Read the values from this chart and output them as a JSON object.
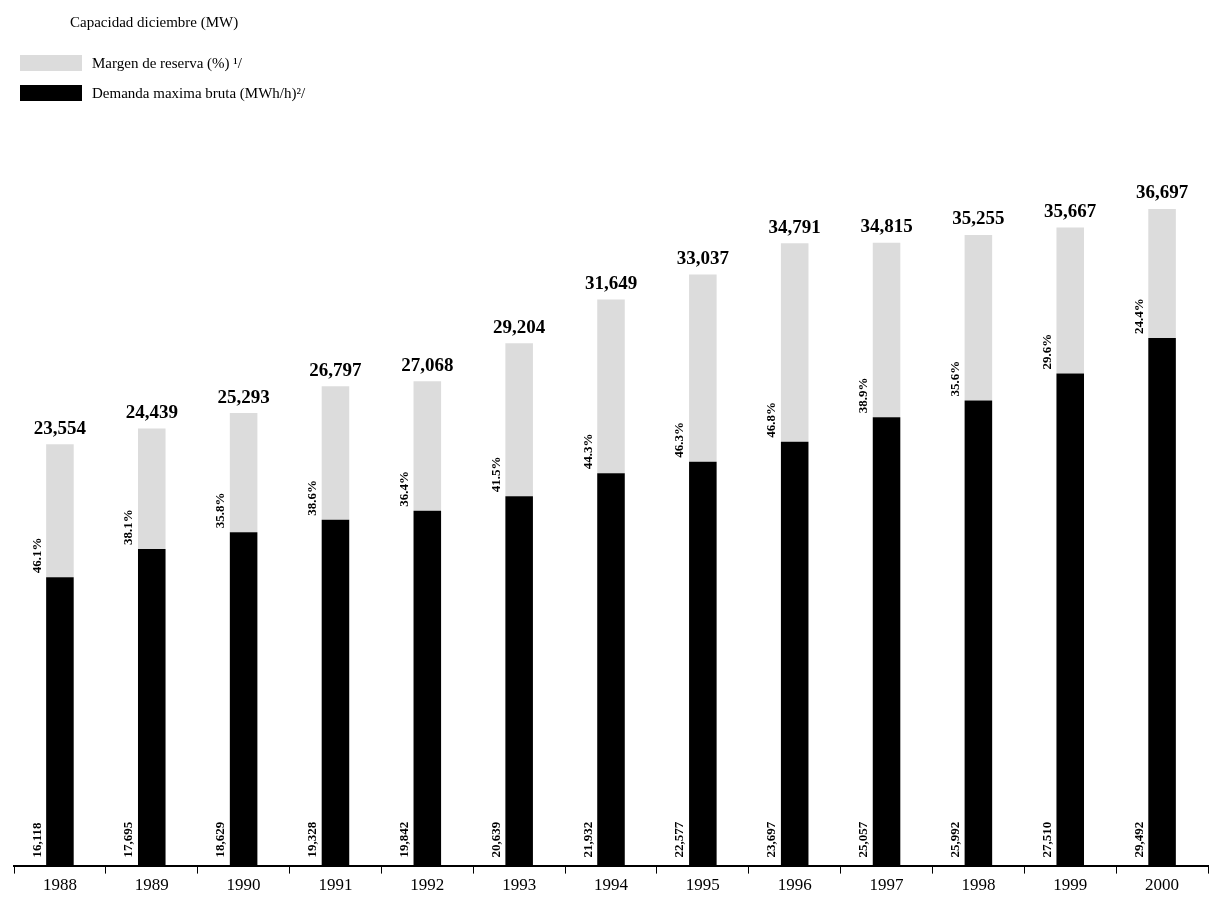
{
  "chart_data": {
    "type": "bar",
    "title": "Capacidad diciembre (MW)",
    "stacked": true,
    "legend": "top left",
    "grid": false,
    "categories": [
      "1988",
      "1989",
      "1990",
      "1991",
      "1992",
      "1993",
      "1994",
      "1995",
      "1996",
      "1997",
      "1998",
      "1999",
      "2000"
    ],
    "series": [
      {
        "name": "Demanda maxima bruta (MWh/h)²/",
        "color": "#000000",
        "values": [
          16118,
          17695,
          18629,
          19328,
          19842,
          20639,
          21932,
          22577,
          23697,
          25057,
          25992,
          27510,
          29492
        ],
        "value_labels": [
          "16,118",
          "17,695",
          "18,629",
          "19,328",
          "19,842",
          "20,639",
          "21,932",
          "22,577",
          "23,697",
          "25,057",
          "25,992",
          "27,510",
          "29,492"
        ]
      },
      {
        "name": "Margen de reserva (%) ¹/",
        "color": "#dcdcdc",
        "values": [
          7436,
          6744,
          6664,
          7469,
          7226,
          8565,
          9717,
          10460,
          11094,
          9758,
          9263,
          8157,
          7205
        ]
      }
    ],
    "totals": [
      "23,554",
      "24,439",
      "25,293",
      "26,797",
      "27,068",
      "29,204",
      "31,649",
      "33,037",
      "34,791",
      "34,815",
      "35,255",
      "35,667",
      "36,697"
    ],
    "annotations": [
      "46.1%",
      "38.1%",
      "35.8%",
      "38.6%",
      "36.4%",
      "41.5%",
      "44.3%",
      "46.3%",
      "46.8%",
      "38.9%",
      "35.6%",
      "29.6%",
      "24.4%"
    ]
  }
}
